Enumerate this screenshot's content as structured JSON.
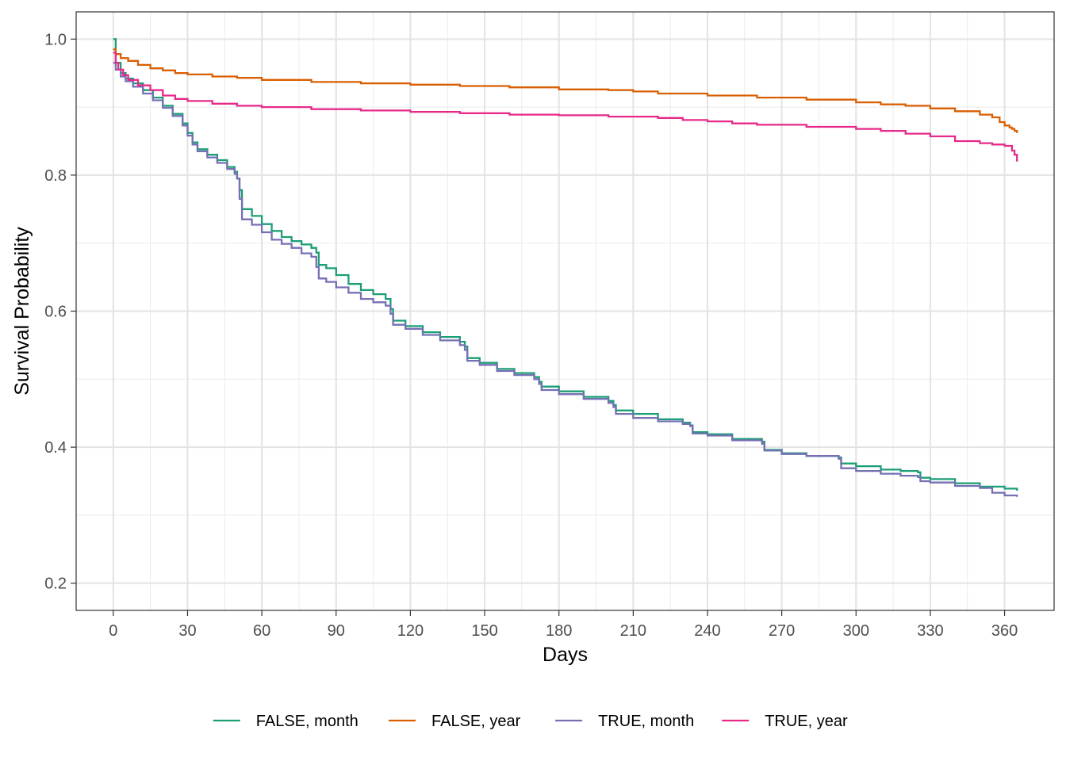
{
  "chart_data": {
    "type": "line",
    "step": true,
    "xlabel": "Days",
    "ylabel": "Survival Probability",
    "xlim": [
      -15,
      380
    ],
    "ylim": [
      0.16,
      1.04
    ],
    "x_ticks": [
      0,
      30,
      60,
      90,
      120,
      150,
      180,
      210,
      240,
      270,
      300,
      330,
      360
    ],
    "x_tick_labels": [
      "0",
      "30",
      "60",
      "90",
      "120",
      "150",
      "180",
      "210",
      "240",
      "270",
      "300",
      "330",
      "360"
    ],
    "y_ticks": [
      0.2,
      0.4,
      0.6,
      0.8,
      1.0
    ],
    "y_tick_labels": [
      "0.2",
      "0.4",
      "0.6",
      "0.8",
      "1.0"
    ],
    "grid": true,
    "legend_position": "bottom",
    "series": [
      {
        "name": "FALSE, month",
        "color": "#1b9e77",
        "x": [
          0,
          1,
          3,
          5,
          8,
          12,
          16,
          20,
          24,
          28,
          30,
          32,
          34,
          38,
          42,
          46,
          49,
          50,
          51,
          52,
          56,
          60,
          64,
          68,
          72,
          76,
          80,
          82,
          83,
          86,
          90,
          95,
          100,
          105,
          110,
          112,
          113,
          118,
          125,
          132,
          140,
          142,
          143,
          148,
          155,
          162,
          170,
          172,
          173,
          180,
          190,
          200,
          202,
          203,
          210,
          220,
          230,
          233,
          234,
          240,
          250,
          262,
          263,
          270,
          280,
          293,
          294,
          300,
          310,
          318,
          325,
          326,
          330,
          340,
          350,
          360,
          365
        ],
        "y": [
          1.0,
          0.965,
          0.95,
          0.942,
          0.935,
          0.925,
          0.914,
          0.902,
          0.89,
          0.876,
          0.862,
          0.848,
          0.838,
          0.83,
          0.822,
          0.812,
          0.805,
          0.795,
          0.778,
          0.75,
          0.74,
          0.728,
          0.718,
          0.709,
          0.703,
          0.698,
          0.693,
          0.686,
          0.668,
          0.663,
          0.653,
          0.64,
          0.631,
          0.625,
          0.618,
          0.603,
          0.586,
          0.578,
          0.569,
          0.562,
          0.555,
          0.548,
          0.531,
          0.524,
          0.515,
          0.509,
          0.503,
          0.496,
          0.489,
          0.482,
          0.474,
          0.468,
          0.462,
          0.454,
          0.449,
          0.441,
          0.436,
          0.432,
          0.422,
          0.419,
          0.412,
          0.408,
          0.396,
          0.391,
          0.387,
          0.385,
          0.376,
          0.372,
          0.367,
          0.365,
          0.363,
          0.355,
          0.353,
          0.347,
          0.342,
          0.339,
          0.336
        ]
      },
      {
        "name": "FALSE, year",
        "color": "#d95f02",
        "x": [
          0,
          1,
          3,
          6,
          10,
          15,
          20,
          25,
          30,
          40,
          50,
          60,
          80,
          100,
          120,
          140,
          160,
          180,
          200,
          210,
          220,
          240,
          260,
          280,
          300,
          310,
          320,
          330,
          340,
          350,
          355,
          358,
          360,
          362,
          363,
          364,
          365
        ],
        "y": [
          0.985,
          0.978,
          0.972,
          0.968,
          0.962,
          0.957,
          0.954,
          0.95,
          0.948,
          0.945,
          0.943,
          0.94,
          0.937,
          0.935,
          0.933,
          0.931,
          0.929,
          0.926,
          0.925,
          0.923,
          0.92,
          0.917,
          0.914,
          0.911,
          0.907,
          0.904,
          0.902,
          0.898,
          0.894,
          0.889,
          0.885,
          0.878,
          0.873,
          0.87,
          0.868,
          0.865,
          0.862
        ]
      },
      {
        "name": "TRUE, month",
        "color": "#7570b3",
        "x": [
          0,
          1,
          3,
          5,
          8,
          12,
          16,
          20,
          24,
          28,
          30,
          32,
          34,
          38,
          42,
          46,
          49,
          50,
          51,
          52,
          56,
          60,
          64,
          68,
          72,
          76,
          80,
          82,
          83,
          86,
          90,
          95,
          100,
          105,
          110,
          112,
          113,
          118,
          125,
          132,
          140,
          142,
          143,
          148,
          155,
          162,
          170,
          172,
          173,
          180,
          190,
          200,
          202,
          203,
          210,
          220,
          230,
          233,
          234,
          240,
          250,
          262,
          263,
          270,
          280,
          293,
          294,
          300,
          310,
          318,
          325,
          326,
          330,
          340,
          350,
          355,
          360,
          365
        ],
        "y": [
          0.965,
          0.955,
          0.945,
          0.938,
          0.93,
          0.92,
          0.91,
          0.899,
          0.887,
          0.873,
          0.858,
          0.845,
          0.835,
          0.826,
          0.818,
          0.809,
          0.802,
          0.795,
          0.765,
          0.735,
          0.727,
          0.716,
          0.705,
          0.699,
          0.693,
          0.685,
          0.68,
          0.665,
          0.648,
          0.643,
          0.635,
          0.627,
          0.618,
          0.613,
          0.608,
          0.596,
          0.58,
          0.574,
          0.565,
          0.557,
          0.55,
          0.543,
          0.527,
          0.521,
          0.512,
          0.506,
          0.5,
          0.493,
          0.484,
          0.478,
          0.471,
          0.465,
          0.459,
          0.449,
          0.443,
          0.438,
          0.434,
          0.431,
          0.42,
          0.417,
          0.41,
          0.405,
          0.395,
          0.39,
          0.387,
          0.383,
          0.369,
          0.365,
          0.361,
          0.358,
          0.356,
          0.35,
          0.348,
          0.343,
          0.34,
          0.333,
          0.329,
          0.327
        ]
      },
      {
        "name": "TRUE, year",
        "color": "#e7298a",
        "x": [
          0,
          1,
          2,
          4,
          6,
          10,
          15,
          20,
          25,
          30,
          40,
          50,
          60,
          80,
          100,
          120,
          140,
          160,
          180,
          200,
          220,
          230,
          240,
          250,
          260,
          280,
          300,
          310,
          320,
          330,
          340,
          350,
          355,
          360,
          363,
          364,
          365
        ],
        "y": [
          0.98,
          0.965,
          0.955,
          0.947,
          0.94,
          0.932,
          0.925,
          0.917,
          0.912,
          0.909,
          0.905,
          0.902,
          0.9,
          0.897,
          0.895,
          0.893,
          0.891,
          0.889,
          0.888,
          0.886,
          0.884,
          0.881,
          0.879,
          0.876,
          0.874,
          0.871,
          0.868,
          0.865,
          0.861,
          0.857,
          0.85,
          0.847,
          0.845,
          0.843,
          0.836,
          0.83,
          0.82
        ]
      }
    ]
  }
}
